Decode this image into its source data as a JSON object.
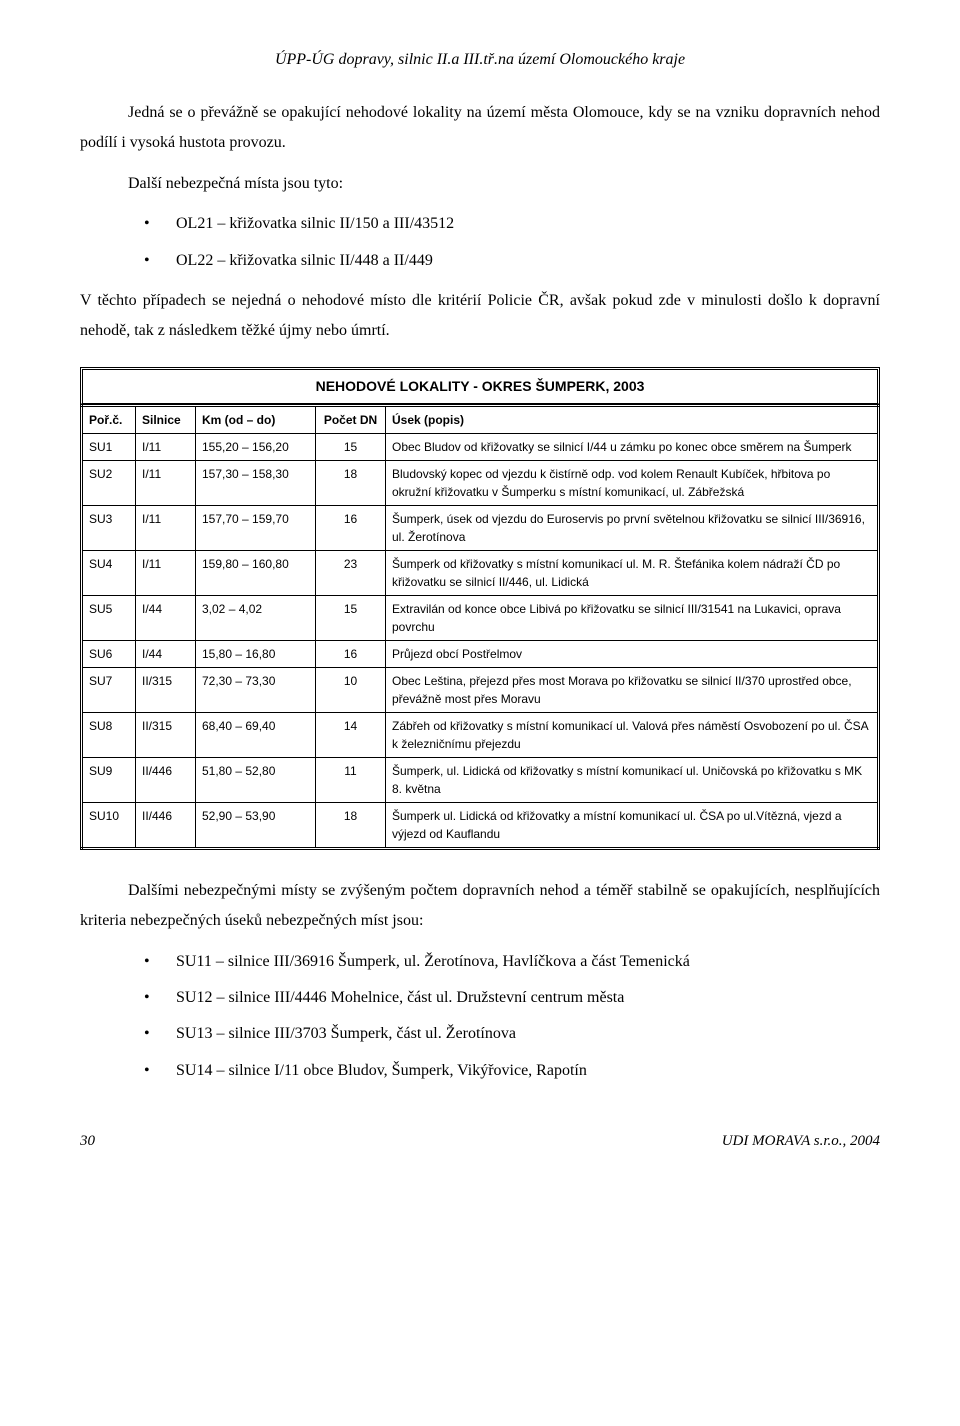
{
  "header": {
    "title": "ÚPP-ÚG dopravy, silnic II.a III.tř.na území Olomouckého kraje"
  },
  "paras": {
    "p1": "Jedná se o převážně se opakující nehodové lokality na území města Olomouce, kdy se na vzniku dopravních nehod podílí i vysoká hustota provozu.",
    "p2": "Další nebezpečná místa jsou tyto:",
    "bul_a": "OL21 – křižovatka silnic II/150 a III/43512",
    "bul_b": "OL22 – křižovatka silnic II/448 a II/449",
    "p3": "V těchto případech se nejedná o nehodové místo dle kritérií Policie ČR, avšak pokud zde v minulosti došlo k dopravní nehodě, tak z následkem těžké újmy nebo úmrtí.",
    "p4": "Dalšími nebezpečnými místy se zvýšeným počtem dopravních nehod a téměř stabilně se opakujících, nesplňujících kriteria nebezpečných úseků nebezpečných míst jsou:",
    "bul_c": "SU11 – silnice III/36916 Šumperk, ul. Žerotínova, Havlíčkova a část Temenická",
    "bul_d": "SU12 – silnice III/4446 Mohelnice, část ul. Družstevní centrum města",
    "bul_e": "SU13 – silnice III/3703 Šumperk, část ul. Žerotínova",
    "bul_f": "SU14 – silnice I/11 obce Bludov, Šumperk, Vikýřovice, Rapotín"
  },
  "table": {
    "title": "NEHODOVÉ LOKALITY - OKRES ŠUMPERK, 2003",
    "columns": [
      "Poř.č.",
      "Silnice",
      "Km (od – do)",
      "Počet DN",
      "Úsek (popis)"
    ],
    "rows": [
      [
        "SU1",
        "I/11",
        "155,20 – 156,20",
        "15",
        "Obec Bludov od křižovatky se silnicí I/44 u zámku po konec obce směrem na Šumperk"
      ],
      [
        "SU2",
        "I/11",
        "157,30 – 158,30",
        "18",
        "Bludovský kopec od vjezdu k čistírně odp. vod kolem Renault Kubíček, hřbitova po okružní křižovatku v Šumperku s místní komunikací, ul. Zábřežská"
      ],
      [
        "SU3",
        "I/11",
        "157,70 – 159,70",
        "16",
        "Šumperk, úsek od vjezdu do Euroservis po první světelnou křižovatku se silnicí III/36916, ul. Žerotínova"
      ],
      [
        "SU4",
        "I/11",
        "159,80 – 160,80",
        "23",
        "Šumperk od křižovatky s místní komunikací ul. M. R. Štefánika kolem nádraží ČD po křižovatku se silnicí II/446, ul. Lidická"
      ],
      [
        "SU5",
        "I/44",
        "3,02 – 4,02",
        "15",
        "Extravilán od konce obce Libivá po křižovatku se silnicí III/31541 na Lukavici, oprava povrchu"
      ],
      [
        "SU6",
        "I/44",
        "15,80 – 16,80",
        "16",
        "Průjezd obcí Postřelmov"
      ],
      [
        "SU7",
        "II/315",
        "72,30 – 73,30",
        "10",
        "Obec Leština, přejezd přes most Morava po křižovatku se silnicí II/370 uprostřed obce, převážně most přes Moravu"
      ],
      [
        "SU8",
        "II/315",
        "68,40 – 69,40",
        "14",
        "Zábřeh od křižovatky s místní komunikací ul. Valová přes náměstí Osvobození po ul. ČSA k železničnímu přejezdu"
      ],
      [
        "SU9",
        "II/446",
        "51,80 – 52,80",
        "11",
        "Šumperk, ul. Lidická od křižovatky s místní komunikací ul. Uničovská po křižovatku s MK 8. května"
      ],
      [
        "SU10",
        "II/446",
        "52,90 – 53,90",
        "18",
        "Šumperk ul. Lidická od křižovatky a místní komunikací ul. ČSA po ul.Vítězná, vjezd a výjezd od Kauflandu"
      ]
    ]
  },
  "footer": {
    "page": "30",
    "org": "UDI MORAVA s.r.o., 2004"
  }
}
